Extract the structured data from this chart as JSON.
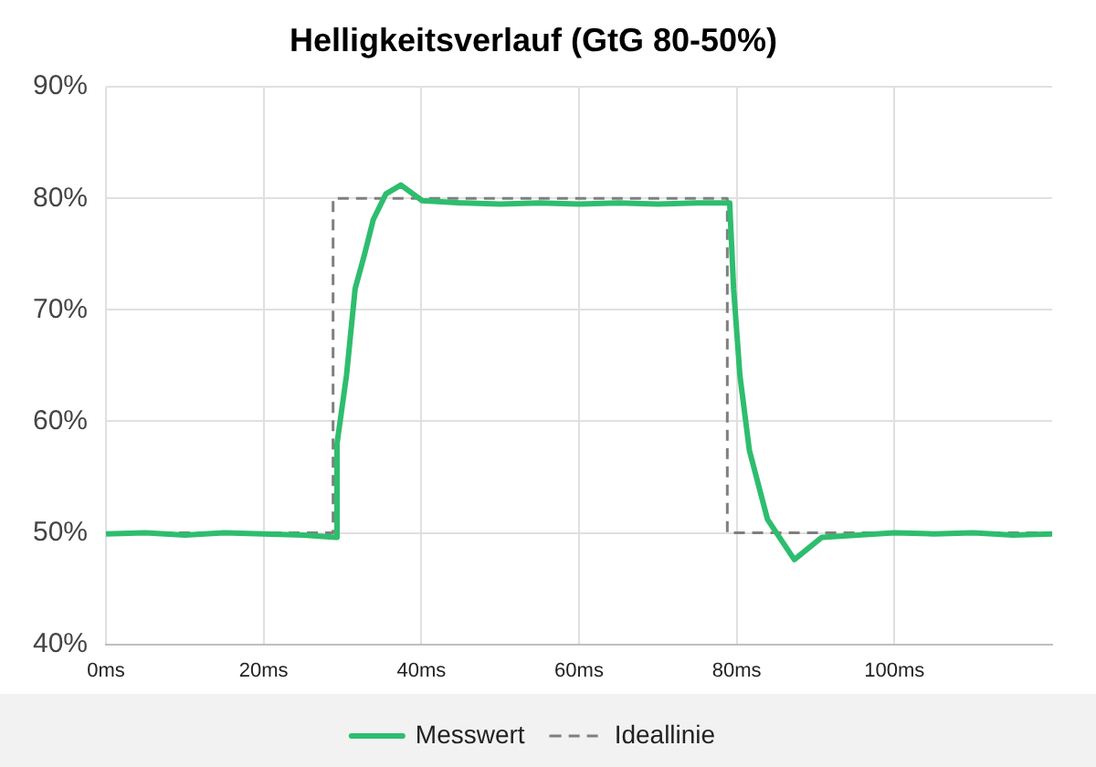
{
  "chart_data": {
    "type": "line",
    "title": "Helligkeitsverlauf (GtG 80-50%)",
    "xlim": [
      0,
      120
    ],
    "xticks": [
      {
        "value": 0,
        "label": "0ms"
      },
      {
        "value": 20,
        "label": "20ms"
      },
      {
        "value": 40,
        "label": "40ms"
      },
      {
        "value": 60,
        "label": "60ms"
      },
      {
        "value": 80,
        "label": "80ms"
      },
      {
        "value": 100,
        "label": "100ms"
      }
    ],
    "ylim": [
      40,
      90
    ],
    "yticks": [
      {
        "value": 40,
        "label": "40%"
      },
      {
        "value": 50,
        "label": "50%"
      },
      {
        "value": 60,
        "label": "60%"
      },
      {
        "value": 70,
        "label": "70%"
      },
      {
        "value": 80,
        "label": "80%"
      },
      {
        "value": 90,
        "label": "90%"
      }
    ],
    "grid": true,
    "legend": "bottom",
    "marker": "none",
    "series": [
      {
        "name": "Messwert",
        "color": "#2ebd6e",
        "line_style": "solid",
        "x": [
          0,
          5,
          10,
          15,
          20,
          25,
          29.2,
          29.3,
          30.5,
          31.6,
          32.8,
          33.9,
          35.5,
          37.4,
          40.1,
          45,
          50,
          55,
          60,
          65,
          70,
          75,
          79.1,
          79.6,
          80.4,
          81.6,
          83.9,
          87.3,
          90.8,
          95.4,
          100,
          105,
          110,
          115,
          120
        ],
        "values": [
          49.9,
          50,
          49.8,
          50,
          49.9,
          49.8,
          49.6,
          58,
          64.1,
          71.9,
          75,
          78.1,
          80.4,
          81.2,
          79.8,
          79.6,
          79.5,
          79.6,
          79.5,
          79.6,
          79.5,
          79.6,
          79.6,
          71.9,
          64.1,
          57.4,
          51.2,
          47.6,
          49.6,
          49.8,
          50,
          49.9,
          50,
          49.8,
          49.9
        ]
      },
      {
        "name": "Ideallinie",
        "color": "#7f7f7f",
        "line_style": "dashed",
        "x": [
          0,
          28.8,
          28.8,
          78.8,
          78.8,
          120
        ],
        "values": [
          50,
          50,
          80,
          80,
          50,
          50
        ]
      }
    ]
  }
}
